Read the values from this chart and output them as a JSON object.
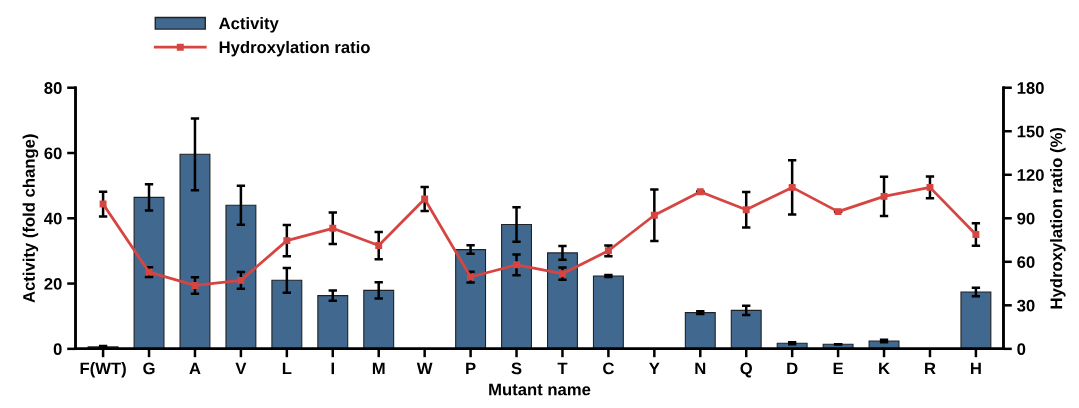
{
  "chart_data": {
    "type": "bar",
    "xlabel": "Mutant name",
    "ylabel": "Activity (fold change)",
    "y2label": "Hydroxylation ratio (%)",
    "categories": [
      "F(WT)",
      "G",
      "A",
      "V",
      "L",
      "I",
      "M",
      "W",
      "P",
      "S",
      "T",
      "C",
      "Y",
      "N",
      "Q",
      "D",
      "E",
      "K",
      "R",
      "H"
    ],
    "series": [
      {
        "name": "Activity",
        "color": "#41698f",
        "values": [
          0.6,
          46.4,
          59.6,
          44.0,
          21.0,
          16.3,
          17.9,
          null,
          30.4,
          38.1,
          29.4,
          22.3,
          null,
          11.1,
          11.8,
          1.7,
          1.4,
          2.4,
          null,
          17.4
        ],
        "errors": [
          0.3,
          4,
          11,
          6,
          3.8,
          1.6,
          2.5,
          null,
          1.3,
          5.3,
          2.1,
          0.3,
          null,
          0.4,
          1.4,
          0.3,
          null,
          0.4,
          null,
          1.3
        ]
      },
      {
        "name": "Hydroxylation ratio",
        "type": "line",
        "axis": "y2",
        "color": "#d64541",
        "marker": "square",
        "values": [
          99.8,
          52.9,
          43.7,
          47.2,
          74.6,
          83.1,
          71.2,
          103.3,
          49.5,
          57.9,
          51.8,
          67.6,
          92.1,
          108.3,
          95.9,
          111.3,
          94.6,
          105.1,
          111.3,
          78.8
        ],
        "errors": [
          8.5,
          3.3,
          5.7,
          5.7,
          10.8,
          10.8,
          9.4,
          8.3,
          3.7,
          7.1,
          4.2,
          3.7,
          17.7,
          null,
          12.2,
          18.7,
          null,
          13.6,
          7.5,
          7.8
        ]
      }
    ],
    "ylim": [
      0,
      80
    ],
    "yticks": [
      0,
      20,
      40,
      60,
      80
    ],
    "y2lim": [
      0,
      180
    ],
    "y2ticks": [
      0,
      30,
      60,
      90,
      120,
      150,
      180
    ],
    "legend": "top left",
    "grid": false
  }
}
